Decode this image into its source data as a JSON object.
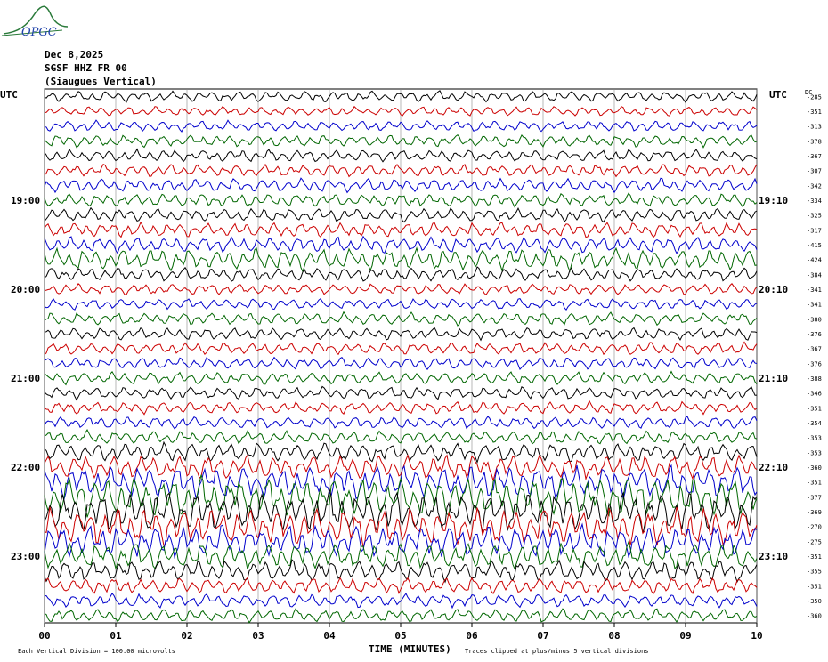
{
  "logo_text": "OPGC",
  "header": {
    "date": "Dec 8,2025",
    "station": "SGSF HHZ FR 00",
    "location": "(Siaugues Vertical)"
  },
  "chart_data": {
    "type": "line",
    "title": "",
    "left_axis_label": "UTC",
    "right_axis_label": "UTC",
    "dc_label": "DC",
    "xlabel": "TIME (MINUTES)",
    "x_ticks": [
      "00",
      "01",
      "02",
      "03",
      "04",
      "05",
      "06",
      "07",
      "08",
      "09",
      "10"
    ],
    "xlim": [
      0,
      10
    ],
    "left_hour_labels": [
      {
        "row": 7,
        "text": "19:00"
      },
      {
        "row": 13,
        "text": "20:00"
      },
      {
        "row": 19,
        "text": "21:00"
      },
      {
        "row": 25,
        "text": "22:00"
      },
      {
        "row": 31,
        "text": "23:00"
      }
    ],
    "right_hour_labels": [
      {
        "row": 7,
        "text": "19:10"
      },
      {
        "row": 13,
        "text": "20:10"
      },
      {
        "row": 19,
        "text": "21:10"
      },
      {
        "row": 25,
        "text": "22:10"
      },
      {
        "row": 31,
        "text": "23:10"
      }
    ],
    "dc_values": [
      "-285",
      "-351",
      "-313",
      "-378",
      "-367",
      "-307",
      "-342",
      "-334",
      "-325",
      "-317",
      "-415",
      "-424",
      "-384",
      "-341",
      "-341",
      "-380",
      "-376",
      "-367",
      "-376",
      "-388",
      "-346",
      "-351",
      "-354",
      "-353",
      "-353",
      "-360",
      "-351",
      "-377",
      "-369",
      "-270",
      "-275",
      "-351",
      "-355",
      "-351",
      "-350",
      "-360"
    ],
    "trace_colors": [
      "#000000",
      "#cc0000",
      "#0000cc",
      "#006600"
    ],
    "row_amplitudes": [
      0.8,
      0.7,
      0.8,
      0.9,
      0.9,
      0.9,
      1.0,
      1.0,
      1.0,
      1.1,
      1.2,
      1.6,
      1.0,
      0.8,
      0.8,
      0.9,
      0.9,
      0.9,
      0.9,
      0.9,
      0.9,
      0.9,
      0.9,
      1.0,
      1.4,
      1.8,
      2.4,
      3.0,
      3.0,
      2.8,
      2.4,
      2.0,
      1.6,
      1.2,
      1.0,
      1.0
    ],
    "footer_left": "Each Vertical Division =  100.00 microvolts",
    "footer_right": "Traces clipped at plus/minus 5 vertical divisions"
  }
}
